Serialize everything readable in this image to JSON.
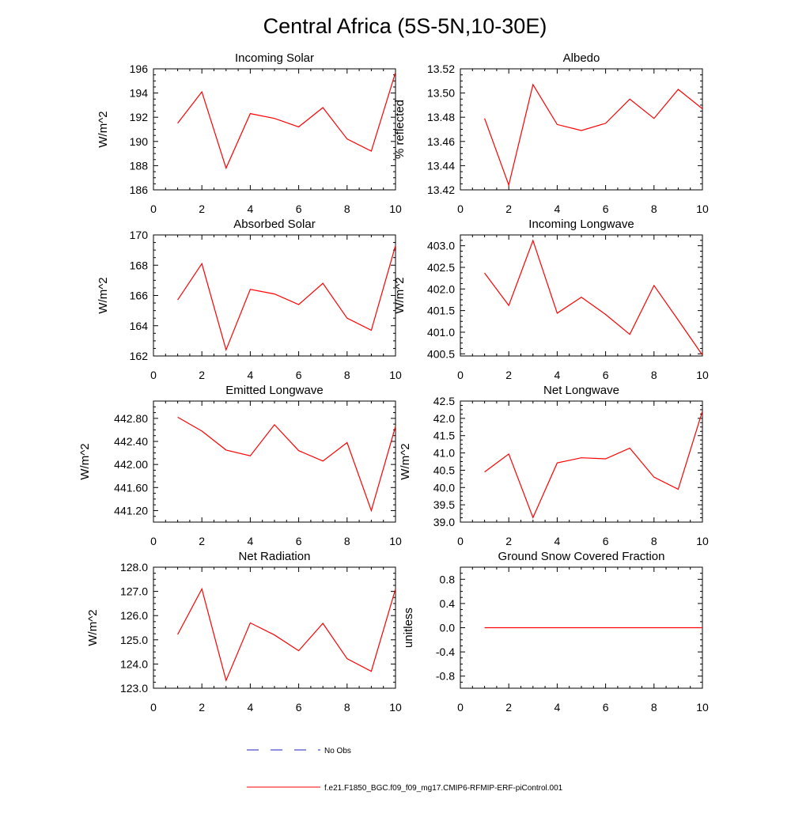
{
  "title": "Central Africa (5S-5N,10-30E)",
  "legend": {
    "obs_label": "No Obs",
    "model_label": "f.e21.F1850_BGC.f09_f09_mg17.CMIP6-RFMIP-ERF-piControl.001",
    "obs_color": "#1f1fbf",
    "model_color": "#ff0000"
  },
  "chart_data": [
    {
      "type": "line",
      "title": "Incoming Solar",
      "ylabel": "W/m^2",
      "xlim": [
        0,
        10
      ],
      "ylim": [
        186,
        196
      ],
      "xticks": [
        "0",
        "2",
        "4",
        "6",
        "8",
        "10"
      ],
      "yticks": [
        "186",
        "188",
        "190",
        "192",
        "194",
        "196"
      ],
      "series": [
        {
          "x": [
            1,
            2,
            3,
            4,
            5,
            6,
            7,
            8,
            9,
            10
          ],
          "values": [
            191.5,
            194.1,
            187.8,
            192.3,
            191.9,
            191.2,
            192.8,
            190.2,
            189.2,
            195.7
          ]
        }
      ]
    },
    {
      "type": "line",
      "title": "Albedo",
      "ylabel": "% reflected",
      "xlim": [
        0,
        10
      ],
      "ylim": [
        13.42,
        13.52
      ],
      "xticks": [
        "0",
        "2",
        "4",
        "6",
        "8",
        "10"
      ],
      "yticks": [
        "13.42",
        "13.44",
        "13.46",
        "13.48",
        "13.50",
        "13.52"
      ],
      "series": [
        {
          "x": [
            1,
            2,
            3,
            4,
            5,
            6,
            7,
            8,
            9,
            10
          ],
          "values": [
            13.479,
            13.424,
            13.507,
            13.474,
            13.469,
            13.475,
            13.495,
            13.479,
            13.503,
            13.487
          ]
        }
      ]
    },
    {
      "type": "line",
      "title": "Absorbed Solar",
      "ylabel": "W/m^2",
      "xlim": [
        0,
        10
      ],
      "ylim": [
        162,
        170
      ],
      "xticks": [
        "0",
        "2",
        "4",
        "6",
        "8",
        "10"
      ],
      "yticks": [
        "162",
        "164",
        "166",
        "168",
        "170"
      ],
      "series": [
        {
          "x": [
            1,
            2,
            3,
            4,
            5,
            6,
            7,
            8,
            9,
            10
          ],
          "values": [
            165.7,
            168.1,
            162.4,
            166.4,
            166.1,
            165.4,
            166.8,
            164.5,
            163.7,
            169.3
          ]
        }
      ]
    },
    {
      "type": "line",
      "title": "Incoming Longwave",
      "ylabel": "W/m^2",
      "xlim": [
        0,
        10
      ],
      "ylim": [
        400.45,
        403.25
      ],
      "xticks": [
        "0",
        "2",
        "4",
        "6",
        "8",
        "10"
      ],
      "yticks": [
        "400.5",
        "401.0",
        "401.5",
        "402.0",
        "402.5",
        "403.0"
      ],
      "series": [
        {
          "x": [
            1,
            2,
            3,
            4,
            5,
            6,
            7,
            8,
            9,
            10
          ],
          "values": [
            402.37,
            401.62,
            403.12,
            401.44,
            401.81,
            401.41,
            400.95,
            402.08,
            401.28,
            400.47
          ]
        }
      ]
    },
    {
      "type": "line",
      "title": "Emitted Longwave",
      "ylabel": "W/m^2",
      "xlim": [
        0,
        10
      ],
      "ylim": [
        441.0,
        443.1
      ],
      "xticks": [
        "0",
        "2",
        "4",
        "6",
        "8",
        "10"
      ],
      "yticks": [
        "441.20",
        "441.60",
        "442.00",
        "442.40",
        "442.80"
      ],
      "series": [
        {
          "x": [
            1,
            2,
            3,
            4,
            5,
            6,
            7,
            8,
            9,
            10
          ],
          "values": [
            442.82,
            442.58,
            442.25,
            442.15,
            442.69,
            442.24,
            442.06,
            442.38,
            441.2,
            442.66
          ]
        }
      ]
    },
    {
      "type": "line",
      "title": "Net Longwave",
      "ylabel": "W/m^2",
      "xlim": [
        0,
        10
      ],
      "ylim": [
        39.0,
        42.5
      ],
      "xticks": [
        "0",
        "2",
        "4",
        "6",
        "8",
        "10"
      ],
      "yticks": [
        "39.0",
        "39.5",
        "40.0",
        "40.5",
        "41.0",
        "41.5",
        "42.0",
        "42.5"
      ],
      "series": [
        {
          "x": [
            1,
            2,
            3,
            4,
            5,
            6,
            7,
            8,
            9,
            10
          ],
          "values": [
            40.45,
            40.97,
            39.13,
            40.71,
            40.86,
            40.83,
            41.14,
            40.3,
            39.95,
            42.21
          ]
        }
      ]
    },
    {
      "type": "line",
      "title": "Net Radiation",
      "ylabel": "W/m^2",
      "xlim": [
        0,
        10
      ],
      "ylim": [
        123.0,
        128.0
      ],
      "xticks": [
        "0",
        "2",
        "4",
        "6",
        "8",
        "10"
      ],
      "yticks": [
        "123.0",
        "124.0",
        "125.0",
        "126.0",
        "127.0",
        "128.0"
      ],
      "series": [
        {
          "x": [
            1,
            2,
            3,
            4,
            5,
            6,
            7,
            8,
            9,
            10
          ],
          "values": [
            125.22,
            127.1,
            123.32,
            125.7,
            125.2,
            124.55,
            125.68,
            124.22,
            123.7,
            127.1
          ]
        }
      ]
    },
    {
      "type": "line",
      "title": "Ground Snow Covered Fraction",
      "ylabel": "unitless",
      "xlim": [
        0,
        10
      ],
      "ylim": [
        -1.0,
        1.0
      ],
      "xticks": [
        "0",
        "2",
        "4",
        "6",
        "8",
        "10"
      ],
      "yticks": [
        "-0.8",
        "-0.4",
        "0.0",
        "0.4",
        "0.8"
      ],
      "series": [
        {
          "x": [
            1,
            2,
            3,
            4,
            5,
            6,
            7,
            8,
            9,
            10
          ],
          "values": [
            0,
            0,
            0,
            0,
            0,
            0,
            0,
            0,
            0,
            0
          ]
        }
      ]
    }
  ]
}
